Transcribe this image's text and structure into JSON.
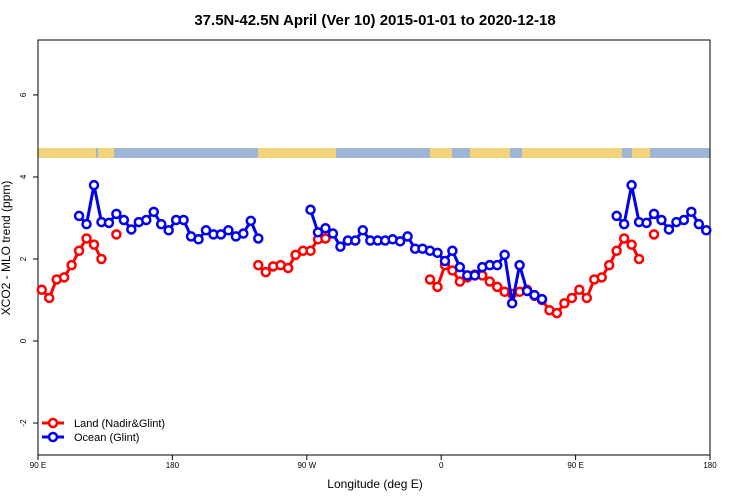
{
  "chart_data": {
    "type": "line",
    "title": "37.5N-42.5N April (Ver 10)   2015-01-01 to 2020-12-18",
    "x_label": "Longitude (deg E)",
    "y_label": "XCO2 - MLO trend (ppm)",
    "xlim": [
      90,
      540
    ],
    "ylim": [
      -2.78,
      7.34
    ],
    "xticks": [
      {
        "value": 90,
        "label": "90 E"
      },
      180,
      {
        "value": 270,
        "label": "90 W"
      },
      {
        "value": 360,
        "label": "0"
      },
      {
        "value": 450,
        "label": "90 E"
      },
      {
        "value": 540,
        "label": "180"
      }
    ],
    "yticks": [
      -2,
      0,
      2,
      4,
      6
    ],
    "legend": "bottom-left",
    "x": [
      92.5,
      97.5,
      102.5,
      107.5,
      112.5,
      117.5,
      122.5,
      127.5,
      132.5,
      137.5,
      142.5,
      147.5,
      152.5,
      157.5,
      162.5,
      167.5,
      172.5,
      177.5,
      182.5,
      187.5,
      192.5,
      197.5,
      202.5,
      207.5,
      212.5,
      217.5,
      222.5,
      227.5,
      232.5,
      237.5,
      242.5,
      247.5,
      252.5,
      257.5,
      262.5,
      267.5,
      272.5,
      277.5,
      282.5,
      287.5,
      292.5,
      297.5,
      302.5,
      307.5,
      312.5,
      317.5,
      322.5,
      327.5,
      332.5,
      337.5,
      342.5,
      347.5,
      352.5,
      357.5,
      362.5,
      367.5,
      372.5,
      377.5,
      382.5,
      387.5,
      392.5,
      397.5,
      402.5,
      407.5,
      412.5,
      417.5,
      422.5,
      427.5,
      432.5,
      437.5,
      442.5,
      447.5,
      452.5,
      457.5,
      462.5,
      467.5,
      472.5,
      477.5,
      482.5,
      487.5,
      492.5,
      497.5,
      502.5,
      507.5,
      512.5,
      517.5,
      522.5,
      527.5,
      532.5,
      537.5
    ],
    "series": [
      {
        "name": "Land (Nadir&Glint)",
        "color": "#ff0000",
        "values": [
          1.25,
          1.05,
          1.5,
          1.55,
          1.85,
          2.2,
          2.5,
          2.35,
          2.0,
          null,
          2.6,
          null,
          null,
          null,
          null,
          null,
          null,
          null,
          null,
          null,
          null,
          null,
          null,
          null,
          null,
          null,
          null,
          null,
          null,
          1.85,
          1.68,
          1.82,
          1.85,
          1.78,
          2.1,
          2.2,
          2.2,
          2.48,
          2.5,
          null,
          null,
          null,
          null,
          null,
          null,
          null,
          null,
          null,
          null,
          null,
          null,
          null,
          1.5,
          1.32,
          1.85,
          1.72,
          1.45,
          1.55,
          1.62,
          1.6,
          1.45,
          1.32,
          1.2,
          1.15,
          1.2,
          1.25,
          1.1,
          1.0,
          0.75,
          0.68,
          0.92,
          1.05,
          1.25,
          1.05,
          1.5,
          1.55,
          1.85,
          2.2,
          2.5,
          2.35,
          2.0,
          null,
          2.6,
          null,
          null,
          null,
          null,
          null,
          null,
          null
        ]
      },
      {
        "name": "Ocean (Glint)",
        "color": "#0000ee",
        "values": [
          null,
          null,
          null,
          null,
          null,
          3.05,
          2.85,
          3.8,
          2.9,
          2.88,
          3.1,
          2.95,
          2.72,
          2.9,
          2.95,
          3.15,
          2.85,
          2.7,
          2.95,
          2.95,
          2.55,
          2.48,
          2.7,
          2.6,
          2.6,
          2.7,
          2.55,
          2.62,
          2.93,
          2.5,
          null,
          null,
          null,
          null,
          null,
          null,
          3.2,
          2.65,
          2.75,
          2.62,
          2.3,
          2.45,
          2.45,
          2.7,
          2.45,
          2.45,
          2.45,
          2.48,
          2.43,
          2.55,
          2.25,
          2.25,
          2.2,
          2.15,
          1.95,
          2.2,
          1.8,
          1.6,
          1.6,
          1.8,
          1.85,
          1.85,
          2.1,
          0.92,
          1.85,
          1.22,
          1.12,
          1.02,
          null,
          null,
          null,
          null,
          null,
          null,
          null,
          null,
          null,
          3.05,
          2.85,
          3.8,
          2.9,
          2.88,
          3.1,
          2.95,
          2.72,
          2.9,
          2.95,
          3.15,
          2.85,
          2.7
        ]
      }
    ]
  }
}
